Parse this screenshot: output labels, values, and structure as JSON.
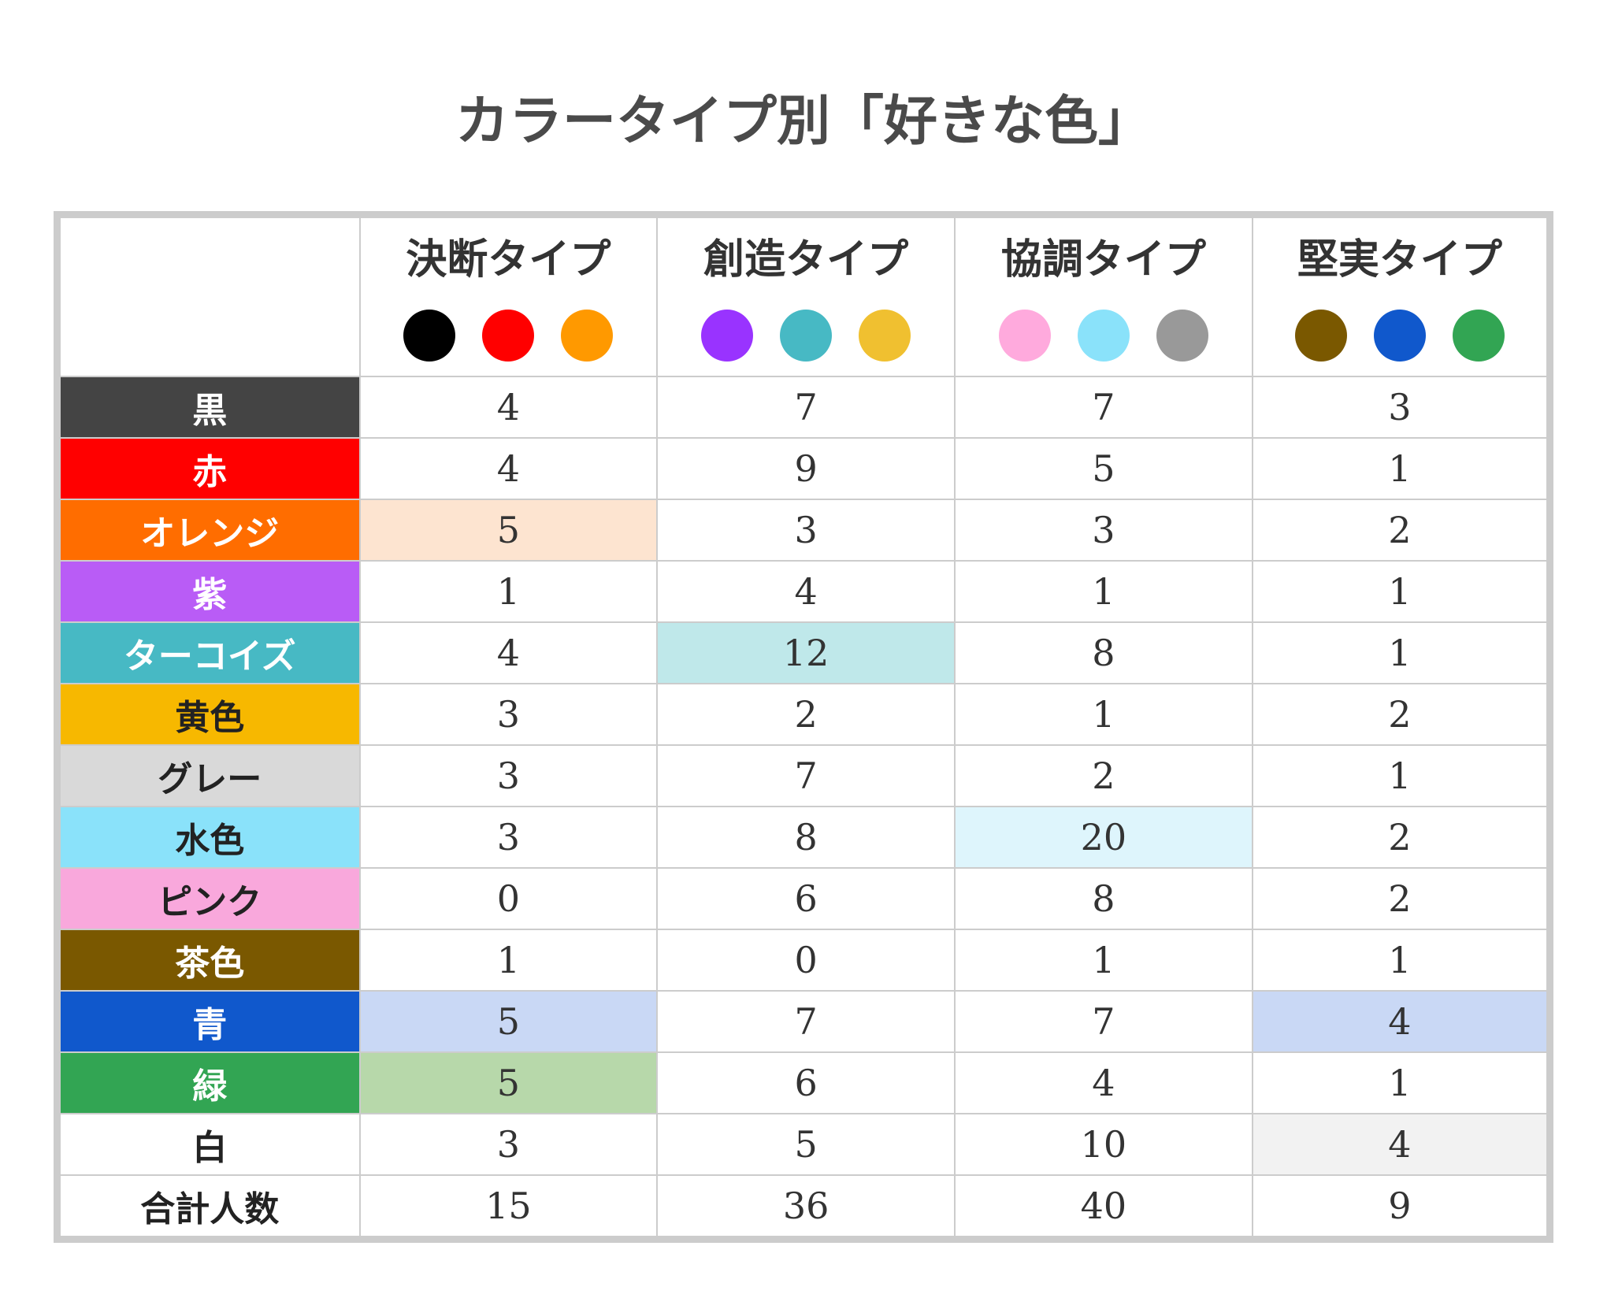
{
  "title": "カラータイプ別「好きな色」",
  "table": {
    "columns": [
      {
        "name": "決断タイプ",
        "colors": [
          "#000000",
          "#ff0000",
          "#ff9900"
        ]
      },
      {
        "name": "創造タイプ",
        "colors": [
          "#9933ff",
          "#47b9c4",
          "#f0c030"
        ]
      },
      {
        "name": "協調タイプ",
        "colors": [
          "#ffaadd",
          "#8ae2fa",
          "#999999"
        ]
      },
      {
        "name": "堅実タイプ",
        "colors": [
          "#7a5800",
          "#1058cc",
          "#32a553"
        ]
      }
    ],
    "rows": [
      {
        "label": "黒",
        "values": [
          4,
          7,
          7,
          3
        ]
      },
      {
        "label": "赤",
        "values": [
          4,
          9,
          5,
          1
        ]
      },
      {
        "label": "オレンジ",
        "values": [
          5,
          3,
          3,
          2
        ]
      },
      {
        "label": "紫",
        "values": [
          1,
          4,
          1,
          1
        ]
      },
      {
        "label": "ターコイズ",
        "values": [
          4,
          12,
          8,
          1
        ]
      },
      {
        "label": "黄色",
        "values": [
          3,
          2,
          1,
          2
        ]
      },
      {
        "label": "グレー",
        "values": [
          3,
          7,
          2,
          1
        ]
      },
      {
        "label": "水色",
        "values": [
          3,
          8,
          20,
          2
        ]
      },
      {
        "label": "ピンク",
        "values": [
          0,
          6,
          8,
          2
        ]
      },
      {
        "label": "茶色",
        "values": [
          1,
          0,
          1,
          1
        ]
      },
      {
        "label": "青",
        "values": [
          5,
          7,
          7,
          4
        ]
      },
      {
        "label": "緑",
        "values": [
          5,
          6,
          4,
          1
        ]
      },
      {
        "label": "白",
        "values": [
          3,
          5,
          10,
          4
        ]
      },
      {
        "label": "合計人数",
        "values": [
          15,
          36,
          40,
          9
        ]
      }
    ]
  }
}
